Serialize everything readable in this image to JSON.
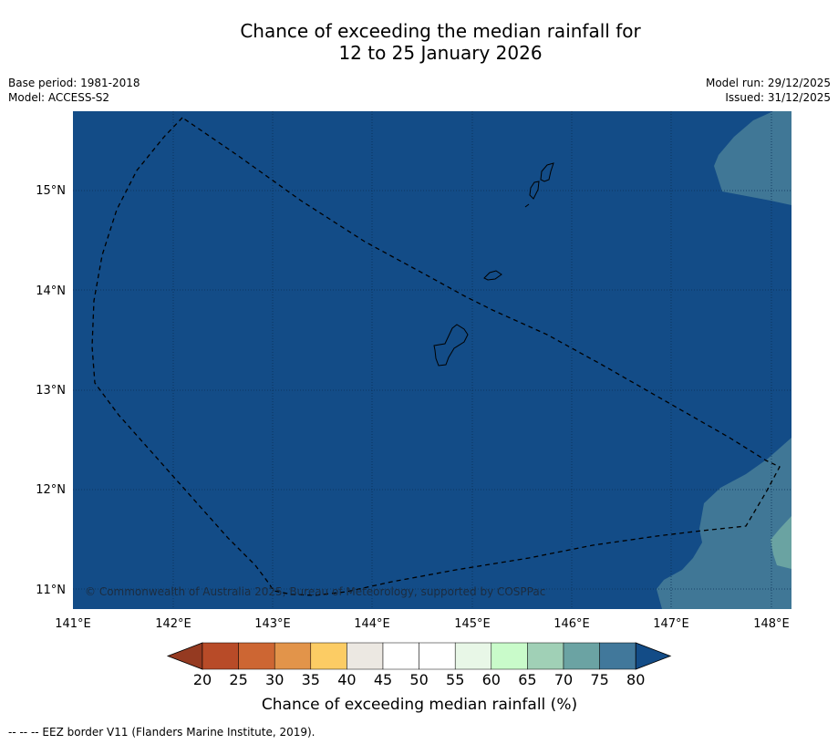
{
  "title": {
    "line1": "Chance of exceeding the median rainfall for",
    "line2": "12 to 25 January 2026"
  },
  "meta": {
    "base_period": "Base period: 1981-2018",
    "model": "Model: ACCESS-S2",
    "model_run": "Model run: 29/12/2025",
    "issued": "Issued: 31/12/2025"
  },
  "map": {
    "lon_ticks": [
      "141°E",
      "142°E",
      "143°E",
      "144°E",
      "145°E",
      "146°E",
      "147°E",
      "148°E"
    ],
    "lat_ticks": [
      "15°N",
      "14°N",
      "13°N",
      "12°N",
      "11°N"
    ],
    "copyright": "© Commonwealth of Australia 2025, Bureau of Meteorology, supported by COSPPac",
    "colors": {
      "ocean": "#134c87",
      "band_75_80": "#407796",
      "band_70_75": "#6aa3a2"
    }
  },
  "legend": {
    "tick_labels": [
      "20",
      "25",
      "30",
      "35",
      "40",
      "45",
      "50",
      "55",
      "60",
      "65",
      "70",
      "75",
      "80"
    ],
    "colors": [
      "#953a21",
      "#b84b28",
      "#cd6633",
      "#e2944a",
      "#fccc64",
      "#ece8e2",
      "#ffffff",
      "#ffffff",
      "#e8f7e7",
      "#c9fbca",
      "#a0d0b6",
      "#6ba3a3",
      "#41789b",
      "#134c87"
    ],
    "label": "Chance of exceeding median rainfall (%)"
  },
  "footnote": "--  --  -- EEZ border V11 (Flanders Marine Institute, 2019)."
}
